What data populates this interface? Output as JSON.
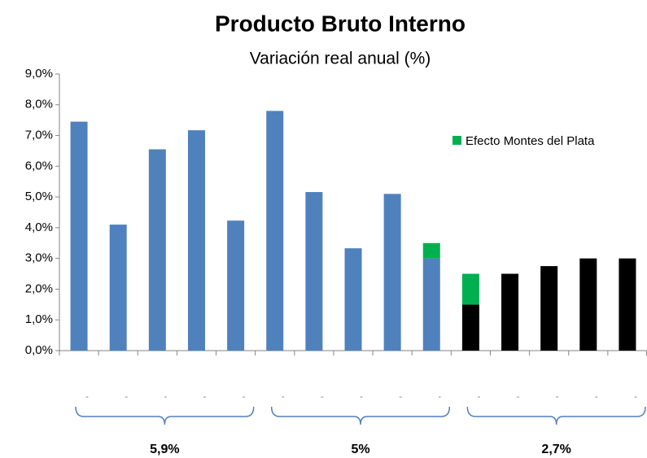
{
  "chart_data": {
    "type": "bar",
    "stacked": true,
    "title": "Producto Bruto Interno",
    "subtitle": "Variación real anual (%)",
    "categories": [
      "-",
      "-",
      "-",
      "-",
      "-",
      "-",
      "-",
      "-",
      "-",
      "-",
      "-",
      "-",
      "-",
      "-",
      "-"
    ],
    "series": [
      {
        "colors": [
          "#4f81bd",
          "#4f81bd",
          "#4f81bd",
          "#4f81bd",
          "#4f81bd",
          "#4f81bd",
          "#4f81bd",
          "#4f81bd",
          "#4f81bd",
          "#4f81bd",
          "#000000",
          "#000000",
          "#000000",
          "#000000",
          "#000000"
        ],
        "values": [
          7.45,
          4.1,
          6.55,
          7.17,
          4.23,
          7.8,
          5.16,
          3.33,
          5.1,
          3.0,
          1.5,
          2.5,
          2.75,
          3.0,
          3.0
        ]
      },
      {
        "name": "Efecto Montes del Plata",
        "color": "#00b050",
        "values": [
          null,
          null,
          null,
          null,
          null,
          null,
          null,
          null,
          null,
          0.5,
          1.0,
          null,
          null,
          null,
          null
        ]
      }
    ],
    "ylim": [
      0,
      9
    ],
    "yticks": [
      {
        "value": 0,
        "label": "0,0%"
      },
      {
        "value": 1,
        "label": "1,0%"
      },
      {
        "value": 2,
        "label": "2,0%"
      },
      {
        "value": 3,
        "label": "3,0%"
      },
      {
        "value": 4,
        "label": "4,0%"
      },
      {
        "value": 5,
        "label": "5,0%"
      },
      {
        "value": 6,
        "label": "6,0%"
      },
      {
        "value": 7,
        "label": "7,0%"
      },
      {
        "value": 8,
        "label": "8,0%"
      },
      {
        "value": 9,
        "label": "9,0%"
      }
    ],
    "grid": false,
    "legend": "right",
    "groups": [
      {
        "label": "5,9%",
        "from": 0,
        "to": 4
      },
      {
        "label": "5%",
        "from": 5,
        "to": 9
      },
      {
        "label": "2,7%",
        "from": 10,
        "to": 14
      }
    ]
  }
}
